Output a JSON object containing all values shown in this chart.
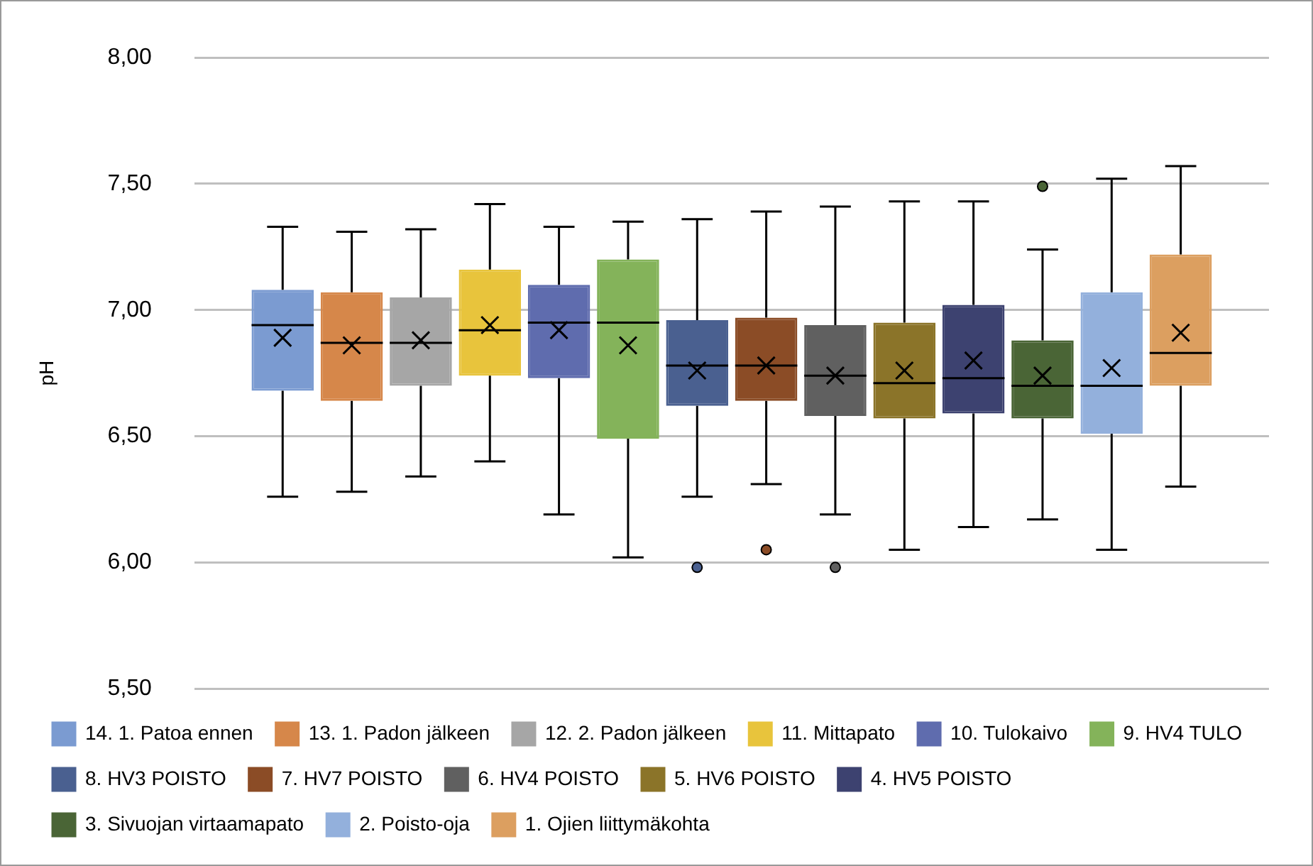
{
  "chart_data": {
    "type": "box",
    "ylabel": "pH",
    "categories": [
      null
    ],
    "ylim": [
      5.5,
      8
    ],
    "yticks": [
      {
        "value": 5.5,
        "label": "5,50"
      },
      {
        "value": 6,
        "label": "6,00"
      },
      {
        "value": 6.5,
        "label": "6,50"
      },
      {
        "value": 7,
        "label": "7,00"
      },
      {
        "value": 7.5,
        "label": "7,50"
      },
      {
        "value": 8,
        "label": "8,00"
      }
    ],
    "grid": "y",
    "legend": "bottom",
    "tick_labels": "y",
    "series": [
      {
        "name": "14. 1. Patoa ennen",
        "color": "#7b9bd1",
        "boxes": [
          {
            "low": 6.26,
            "q1": 6.68,
            "median": 6.94,
            "q3": 7.08,
            "high": 7.33,
            "mean": 6.89
          }
        ]
      },
      {
        "name": "13. 1. Padon jälkeen",
        "color": "#d6874a",
        "boxes": [
          {
            "low": 6.28,
            "q1": 6.64,
            "median": 6.87,
            "q3": 7.07,
            "high": 7.31,
            "mean": 6.86
          }
        ]
      },
      {
        "name": "12. 2. Padon jälkeen",
        "color": "#a6a6a6",
        "boxes": [
          {
            "low": 6.34,
            "q1": 6.7,
            "median": 6.87,
            "q3": 7.05,
            "high": 7.32,
            "mean": 6.88
          }
        ]
      },
      {
        "name": "11. Mittapato",
        "color": "#e8c43c",
        "boxes": [
          {
            "low": 6.4,
            "q1": 6.74,
            "median": 6.92,
            "q3": 7.16,
            "high": 7.42,
            "mean": 6.94
          }
        ]
      },
      {
        "name": "10. Tulokaivo",
        "color": "#5f6cae",
        "boxes": [
          {
            "low": 6.19,
            "q1": 6.73,
            "median": 6.95,
            "q3": 7.1,
            "high": 7.33,
            "mean": 6.92
          }
        ]
      },
      {
        "name": "9. HV4 TULO",
        "color": "#84b35a",
        "boxes": [
          {
            "low": 6.02,
            "q1": 6.49,
            "median": 6.95,
            "q3": 7.2,
            "high": 7.35,
            "mean": 6.86
          }
        ]
      },
      {
        "name": "8. HV3 POISTO",
        "color": "#4a6090",
        "boxes": [
          {
            "low": 6.26,
            "q1": 6.62,
            "median": 6.78,
            "q3": 6.96,
            "high": 7.36,
            "mean": 6.76,
            "outliers": [
              5.98
            ]
          }
        ]
      },
      {
        "name": "7. HV7 POISTO",
        "color": "#8b4c26",
        "boxes": [
          {
            "low": 6.31,
            "q1": 6.64,
            "median": 6.78,
            "q3": 6.97,
            "high": 7.39,
            "mean": 6.78,
            "outliers": [
              6.05
            ]
          }
        ]
      },
      {
        "name": "6. HV4 POISTO",
        "color": "#606060",
        "boxes": [
          {
            "low": 6.19,
            "q1": 6.58,
            "median": 6.74,
            "q3": 6.94,
            "high": 7.41,
            "mean": 6.74,
            "outliers": [
              5.98
            ]
          }
        ]
      },
      {
        "name": "5. HV6 POISTO",
        "color": "#8b7429",
        "boxes": [
          {
            "low": 6.05,
            "q1": 6.57,
            "median": 6.71,
            "q3": 6.95,
            "high": 7.43,
            "mean": 6.76
          }
        ]
      },
      {
        "name": "4. HV5 POISTO",
        "color": "#3d4270",
        "boxes": [
          {
            "low": 6.14,
            "q1": 6.59,
            "median": 6.73,
            "q3": 7.02,
            "high": 7.43,
            "mean": 6.8
          }
        ]
      },
      {
        "name": "3. Sivuojan virtaamapato",
        "color": "#4a6536",
        "boxes": [
          {
            "low": 6.17,
            "q1": 6.57,
            "median": 6.7,
            "q3": 6.88,
            "high": 7.24,
            "mean": 6.74,
            "outliers": [
              7.49
            ]
          }
        ]
      },
      {
        "name": "2. Poisto-oja",
        "color": "#93b0dc",
        "boxes": [
          {
            "low": 6.05,
            "q1": 6.51,
            "median": 6.7,
            "q3": 7.07,
            "high": 7.52,
            "mean": 6.77
          }
        ]
      },
      {
        "name": "1. Ojien liittymäkohta",
        "color": "#dc9f60",
        "boxes": [
          {
            "low": 6.3,
            "q1": 6.7,
            "median": 6.83,
            "q3": 7.22,
            "high": 7.57,
            "mean": 6.91
          }
        ]
      }
    ]
  }
}
